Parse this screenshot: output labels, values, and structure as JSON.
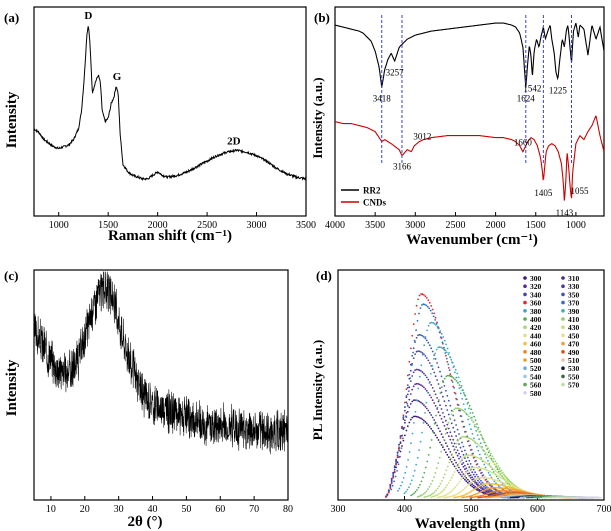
{
  "figure": {
    "panels": [
      {
        "letter": "(a)",
        "ylabel": "Intensity",
        "xlabel": "Raman shift (cm⁻¹)"
      },
      {
        "letter": "(b)",
        "ylabel": "Intensity (a.u.)",
        "xlabel": "Wavenumber (cm⁻¹)"
      },
      {
        "letter": "(c)",
        "ylabel": "Intensity",
        "xlabel": "2θ (°)"
      },
      {
        "letter": "(d)",
        "ylabel": "PL Intensity (a.u.)",
        "xlabel": "Wavelength (nm)"
      }
    ]
  },
  "chart_data": [
    {
      "panel": "(a)",
      "type": "line",
      "xlabel": "Raman shift (cm⁻¹)",
      "ylabel": "Intensity",
      "xlim": [
        750,
        3500
      ],
      "xticks": [
        1000,
        1500,
        2000,
        2500,
        3000,
        3500
      ],
      "yticks_shown": false,
      "series": [
        {
          "color": "#000000",
          "x": [
            750,
            800,
            850,
            900,
            950,
            1000,
            1050,
            1100,
            1150,
            1200,
            1230,
            1260,
            1285,
            1300,
            1315,
            1340,
            1370,
            1400,
            1420,
            1440,
            1470,
            1500,
            1530,
            1560,
            1580,
            1600,
            1620,
            1650,
            1700,
            1750,
            1800,
            1850,
            1900,
            1950,
            2000,
            2050,
            2100,
            2200,
            2300,
            2400,
            2500,
            2600,
            2700,
            2800,
            2900,
            3000,
            3100,
            3200,
            3300,
            3400,
            3500
          ],
          "y": [
            0.42,
            0.4,
            0.36,
            0.34,
            0.32,
            0.31,
            0.32,
            0.33,
            0.36,
            0.42,
            0.52,
            0.72,
            0.95,
            1.0,
            0.9,
            0.62,
            0.68,
            0.72,
            0.68,
            0.52,
            0.46,
            0.48,
            0.56,
            0.6,
            0.66,
            0.62,
            0.4,
            0.22,
            0.18,
            0.16,
            0.15,
            0.14,
            0.14,
            0.16,
            0.18,
            0.16,
            0.15,
            0.16,
            0.18,
            0.21,
            0.24,
            0.27,
            0.29,
            0.3,
            0.29,
            0.27,
            0.24,
            0.2,
            0.17,
            0.15,
            0.14
          ]
        }
      ],
      "annotations": [
        {
          "text": "D",
          "x": 1300,
          "y": 1.0
        },
        {
          "text": "G",
          "x": 1590,
          "y": 0.66
        },
        {
          "text": "2D",
          "x": 2770,
          "y": 0.3
        }
      ]
    },
    {
      "panel": "(b)",
      "type": "line",
      "xlabel": "Wavenumber (cm⁻¹)",
      "ylabel": "Intensity (a.u.)",
      "xlim": [
        4000,
        650
      ],
      "x_reversed": true,
      "xticks": [
        4000,
        3500,
        3000,
        2500,
        2000,
        1500,
        1000
      ],
      "yticks_shown": false,
      "legend": {
        "position": "bottom-left",
        "entries": [
          "RR2",
          "CNDs"
        ]
      },
      "series": [
        {
          "name": "RR2",
          "color": "#000000",
          "x": [
            4000,
            3900,
            3800,
            3700,
            3650,
            3600,
            3550,
            3500,
            3450,
            3418,
            3380,
            3340,
            3300,
            3257,
            3200,
            3100,
            3000,
            2900,
            2800,
            2600,
            2400,
            2200,
            2000,
            1900,
            1800,
            1750,
            1700,
            1660,
            1624,
            1600,
            1580,
            1560,
            1542,
            1520,
            1490,
            1460,
            1430,
            1405,
            1380,
            1350,
            1320,
            1300,
            1270,
            1250,
            1225,
            1200,
            1170,
            1143,
            1120,
            1100,
            1080,
            1055,
            1030,
            1000,
            970,
            950,
            900,
            850,
            800,
            750,
            700,
            650
          ],
          "y": [
            0.93,
            0.92,
            0.91,
            0.9,
            0.89,
            0.87,
            0.85,
            0.8,
            0.72,
            0.62,
            0.71,
            0.76,
            0.79,
            0.75,
            0.82,
            0.86,
            0.88,
            0.89,
            0.9,
            0.91,
            0.92,
            0.93,
            0.94,
            0.94,
            0.93,
            0.92,
            0.89,
            0.82,
            0.62,
            0.74,
            0.83,
            0.78,
            0.67,
            0.8,
            0.86,
            0.82,
            0.88,
            0.92,
            0.86,
            0.9,
            0.93,
            0.86,
            0.79,
            0.7,
            0.66,
            0.76,
            0.86,
            0.82,
            0.9,
            0.93,
            0.85,
            0.74,
            0.9,
            0.94,
            0.87,
            0.93,
            0.91,
            0.78,
            0.93,
            0.86,
            0.92,
            0.8
          ]
        },
        {
          "name": "CNDs",
          "color": "#cc0000",
          "x": [
            4000,
            3900,
            3800,
            3700,
            3600,
            3500,
            3450,
            3418,
            3380,
            3300,
            3200,
            3166,
            3100,
            3050,
            3012,
            2950,
            2900,
            2800,
            2600,
            2400,
            2200,
            2000,
            1900,
            1800,
            1750,
            1700,
            1660,
            1624,
            1600,
            1560,
            1520,
            1480,
            1440,
            1420,
            1405,
            1390,
            1370,
            1340,
            1300,
            1260,
            1220,
            1180,
            1160,
            1143,
            1125,
            1110,
            1090,
            1070,
            1055,
            1040,
            1000,
            950,
            900,
            850,
            800,
            750,
            700,
            650
          ],
          "y": [
            0.45,
            0.44,
            0.44,
            0.43,
            0.42,
            0.4,
            0.37,
            0.35,
            0.36,
            0.34,
            0.31,
            0.28,
            0.31,
            0.3,
            0.33,
            0.35,
            0.36,
            0.37,
            0.38,
            0.38,
            0.38,
            0.37,
            0.37,
            0.36,
            0.35,
            0.33,
            0.3,
            0.33,
            0.35,
            0.37,
            0.36,
            0.33,
            0.27,
            0.21,
            0.15,
            0.22,
            0.3,
            0.33,
            0.34,
            0.33,
            0.3,
            0.24,
            0.16,
            0.05,
            0.16,
            0.3,
            0.22,
            0.12,
            0.06,
            0.2,
            0.34,
            0.38,
            0.36,
            0.4,
            0.43,
            0.48,
            0.38,
            0.3
          ]
        }
      ],
      "annotations": [
        {
          "text": "3418",
          "x": 3418
        },
        {
          "text": "3257",
          "x": 3257
        },
        {
          "text": "3166",
          "x": 3166
        },
        {
          "text": "3012",
          "x": 3012
        },
        {
          "text": "1660",
          "x": 1660
        },
        {
          "text": "1624",
          "x": 1624
        },
        {
          "text": "1542",
          "x": 1542
        },
        {
          "text": "1405",
          "x": 1405
        },
        {
          "text": "1225",
          "x": 1225
        },
        {
          "text": "1143",
          "x": 1143
        },
        {
          "text": "1055",
          "x": 1055
        }
      ],
      "dashed_guides_x": [
        3418,
        3166,
        1624,
        1405,
        1055
      ]
    },
    {
      "panel": "(c)",
      "type": "line",
      "xlabel": "2θ (°)",
      "ylabel": "Intensity",
      "xlim": [
        5,
        80
      ],
      "xticks": [
        10,
        20,
        30,
        40,
        50,
        60,
        70,
        80
      ],
      "yticks_shown": false,
      "series": [
        {
          "color": "#000000",
          "noisy": true,
          "x": [
            5,
            8,
            10,
            12,
            14,
            16,
            18,
            20,
            22,
            24,
            26,
            28,
            30,
            32,
            34,
            36,
            38,
            40,
            45,
            50,
            55,
            60,
            65,
            70,
            75,
            80
          ],
          "y": [
            0.75,
            0.68,
            0.62,
            0.58,
            0.56,
            0.57,
            0.62,
            0.72,
            0.84,
            0.92,
            0.95,
            0.9,
            0.8,
            0.68,
            0.58,
            0.5,
            0.45,
            0.42,
            0.38,
            0.35,
            0.33,
            0.32,
            0.31,
            0.3,
            0.29,
            0.29
          ]
        }
      ]
    },
    {
      "panel": "(d)",
      "type": "line",
      "xlabel": "Wavelength (nm)",
      "ylabel": "PL Intensity (a.u.)",
      "xlim": [
        300,
        700
      ],
      "xticks": [
        300,
        400,
        500,
        600,
        700
      ],
      "yticks_shown": false,
      "legend": {
        "position": "top-right",
        "columns": 2,
        "entries": [
          "300",
          "310",
          "320",
          "330",
          "340",
          "350",
          "360",
          "370",
          "380",
          "390",
          "400",
          "410",
          "420",
          "430",
          "440",
          "450",
          "460",
          "470",
          "480",
          "490",
          "500",
          "510",
          "520",
          "530",
          "540",
          "550",
          "560",
          "570",
          "580"
        ]
      },
      "series": [
        {
          "name": "300",
          "color": "#3b1a7a",
          "peak": 415,
          "amplitude": 0.4
        },
        {
          "name": "310",
          "color": "#442a88",
          "peak": 415,
          "amplitude": 0.48
        },
        {
          "name": "320",
          "color": "#5b2a9a",
          "peak": 418,
          "amplitude": 0.56
        },
        {
          "name": "330",
          "color": "#4a3aa0",
          "peak": 418,
          "amplitude": 0.63
        },
        {
          "name": "340",
          "color": "#4040b0",
          "peak": 420,
          "amplitude": 0.72
        },
        {
          "name": "350",
          "color": "#3a55b8",
          "peak": 422,
          "amplitude": 0.8
        },
        {
          "name": "360",
          "color": "#e02a2a",
          "peak": 425,
          "amplitude": 1.0
        },
        {
          "name": "370",
          "color": "#2f6ec0",
          "peak": 428,
          "amplitude": 0.95
        },
        {
          "name": "380",
          "color": "#3fa0d8",
          "peak": 440,
          "amplitude": 0.86
        },
        {
          "name": "390",
          "color": "#3db0b0",
          "peak": 452,
          "amplitude": 0.74
        },
        {
          "name": "400",
          "color": "#4cae4c",
          "peak": 465,
          "amplitude": 0.6
        },
        {
          "name": "410",
          "color": "#8fcf6f",
          "peak": 478,
          "amplitude": 0.44
        },
        {
          "name": "420",
          "color": "#a8d870",
          "peak": 488,
          "amplitude": 0.3
        },
        {
          "name": "430",
          "color": "#c5e07a",
          "peak": 495,
          "amplitude": 0.21
        },
        {
          "name": "440",
          "color": "#d8e38a",
          "peak": 505,
          "amplitude": 0.15
        },
        {
          "name": "450",
          "color": "#e6e08a",
          "peak": 515,
          "amplitude": 0.1
        },
        {
          "name": "460",
          "color": "#f0c040",
          "peak": 525,
          "amplitude": 0.07
        },
        {
          "name": "470",
          "color": "#f0a030",
          "peak": 535,
          "amplitude": 0.05
        },
        {
          "name": "480",
          "color": "#f08020",
          "peak": 545,
          "amplitude": 0.035
        },
        {
          "name": "490",
          "color": "#e05010",
          "peak": 555,
          "amplitude": 0.025
        },
        {
          "name": "500",
          "color": "#e8a020",
          "peak": 565,
          "amplitude": 0.02
        },
        {
          "name": "510",
          "color": "#f0c0a0",
          "peak": 575,
          "amplitude": 0.015
        },
        {
          "name": "520",
          "color": "#6aaee0",
          "peak": 585,
          "amplitude": 0.012
        },
        {
          "name": "530",
          "color": "#1a1a3a",
          "peak": 595,
          "amplitude": 0.01
        },
        {
          "name": "540",
          "color": "#9ac8e8",
          "peak": 605,
          "amplitude": 0.008
        },
        {
          "name": "550",
          "color": "#3a6a3a",
          "peak": 615,
          "amplitude": 0.007
        },
        {
          "name": "560",
          "color": "#5aaa5a",
          "peak": 625,
          "amplitude": 0.006
        },
        {
          "name": "570",
          "color": "#b8e0a0",
          "peak": 635,
          "amplitude": 0.005
        },
        {
          "name": "580",
          "color": "#d8d0f0",
          "peak": 645,
          "amplitude": 0.004
        }
      ]
    }
  ]
}
